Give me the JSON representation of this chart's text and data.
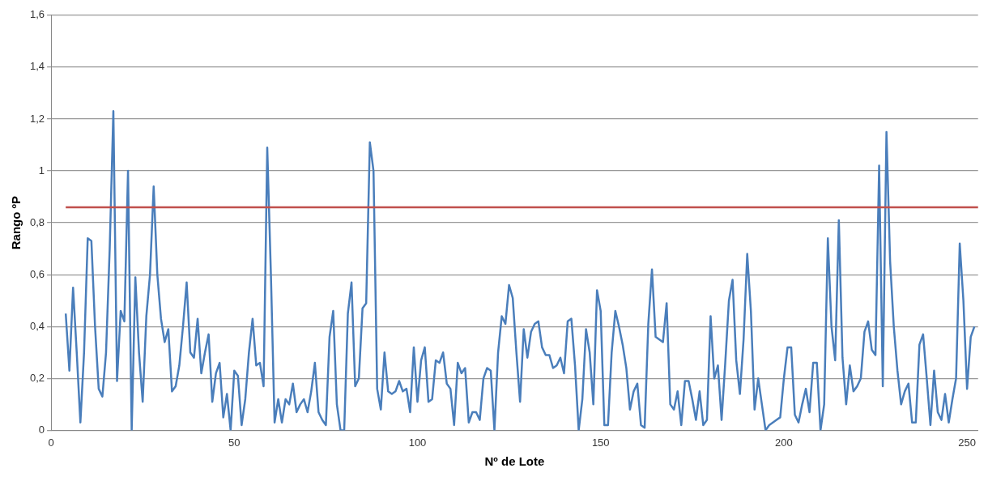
{
  "chart_data": {
    "type": "line",
    "xlabel": "Nº de Lote",
    "ylabel": "Rango ºP",
    "x": [
      4,
      5,
      6,
      7,
      8,
      9,
      10,
      11,
      12,
      13,
      14,
      15,
      16,
      17,
      18,
      19,
      20,
      21,
      22,
      23,
      24,
      25,
      26,
      27,
      28,
      29,
      30,
      31,
      32,
      33,
      34,
      35,
      36,
      37,
      38,
      39,
      40,
      41,
      42,
      43,
      44,
      45,
      46,
      47,
      48,
      49,
      50,
      51,
      52,
      53,
      54,
      55,
      56,
      57,
      58,
      59,
      60,
      61,
      62,
      63,
      64,
      65,
      66,
      67,
      68,
      69,
      70,
      71,
      72,
      73,
      74,
      75,
      76,
      77,
      78,
      79,
      80,
      81,
      82,
      83,
      84,
      85,
      86,
      87,
      88,
      89,
      90,
      91,
      92,
      93,
      94,
      95,
      96,
      97,
      98,
      99,
      100,
      101,
      102,
      103,
      104,
      105,
      106,
      107,
      108,
      109,
      110,
      111,
      112,
      113,
      114,
      115,
      116,
      117,
      118,
      119,
      120,
      121,
      122,
      123,
      124,
      125,
      126,
      127,
      128,
      129,
      130,
      131,
      132,
      133,
      134,
      135,
      136,
      137,
      138,
      139,
      140,
      141,
      142,
      143,
      144,
      145,
      146,
      147,
      148,
      149,
      150,
      151,
      152,
      153,
      154,
      155,
      156,
      157,
      158,
      159,
      160,
      161,
      162,
      163,
      164,
      165,
      166,
      167,
      168,
      169,
      170,
      171,
      172,
      173,
      174,
      175,
      176,
      177,
      178,
      179,
      180,
      181,
      182,
      183,
      184,
      185,
      186,
      187,
      188,
      189,
      190,
      191,
      192,
      193,
      194,
      195,
      196,
      197,
      198,
      199,
      200,
      201,
      202,
      203,
      204,
      205,
      206,
      207,
      208,
      209,
      210,
      211,
      212,
      213,
      214,
      215,
      216,
      217,
      218,
      219,
      220,
      221,
      222,
      223,
      224,
      225,
      226,
      227,
      228,
      229,
      230,
      231,
      232,
      233,
      234,
      235,
      236,
      237,
      238,
      239,
      240,
      241,
      242,
      243,
      244,
      245,
      246,
      247,
      248,
      249,
      250,
      251,
      252
    ],
    "series": [
      {
        "color": "#4a7ebb",
        "values": [
          0.45,
          0.23,
          0.55,
          0.3,
          0.03,
          0.3,
          0.74,
          0.73,
          0.4,
          0.16,
          0.13,
          0.3,
          0.7,
          1.23,
          0.19,
          0.46,
          0.42,
          1.0,
          0.0,
          0.59,
          0.3,
          0.11,
          0.44,
          0.6,
          0.94,
          0.6,
          0.43,
          0.34,
          0.39,
          0.15,
          0.17,
          0.25,
          0.4,
          0.57,
          0.3,
          0.28,
          0.43,
          0.22,
          0.3,
          0.37,
          0.11,
          0.22,
          0.26,
          0.05,
          0.14,
          0.0,
          0.23,
          0.21,
          0.02,
          0.12,
          0.3,
          0.43,
          0.25,
          0.26,
          0.17,
          1.09,
          0.6,
          0.03,
          0.12,
          0.03,
          0.12,
          0.1,
          0.18,
          0.07,
          0.1,
          0.12,
          0.07,
          0.15,
          0.26,
          0.07,
          0.04,
          0.02,
          0.36,
          0.46,
          0.1,
          0.0,
          0.0,
          0.45,
          0.57,
          0.17,
          0.2,
          0.47,
          0.49,
          1.11,
          1.0,
          0.16,
          0.08,
          0.3,
          0.15,
          0.14,
          0.15,
          0.19,
          0.15,
          0.16,
          0.07,
          0.32,
          0.11,
          0.27,
          0.32,
          0.11,
          0.12,
          0.27,
          0.26,
          0.3,
          0.18,
          0.16,
          0.02,
          0.26,
          0.22,
          0.24,
          0.03,
          0.07,
          0.07,
          0.04,
          0.2,
          0.24,
          0.23,
          0.0,
          0.3,
          0.44,
          0.41,
          0.56,
          0.51,
          0.3,
          0.11,
          0.39,
          0.28,
          0.38,
          0.41,
          0.42,
          0.32,
          0.29,
          0.29,
          0.24,
          0.25,
          0.28,
          0.22,
          0.42,
          0.43,
          0.25,
          0.0,
          0.12,
          0.39,
          0.3,
          0.1,
          0.54,
          0.46,
          0.02,
          0.02,
          0.3,
          0.46,
          0.4,
          0.33,
          0.24,
          0.08,
          0.15,
          0.18,
          0.02,
          0.01,
          0.41,
          0.62,
          0.36,
          0.35,
          0.34,
          0.49,
          0.1,
          0.08,
          0.15,
          0.02,
          0.19,
          0.19,
          0.12,
          0.04,
          0.15,
          0.02,
          0.04,
          0.44,
          0.2,
          0.25,
          0.04,
          0.26,
          0.5,
          0.58,
          0.27,
          0.14,
          0.35,
          0.68,
          0.46,
          0.08,
          0.2,
          0.1,
          0.0,
          0.02,
          0.03,
          0.04,
          0.05,
          0.2,
          0.32,
          0.32,
          0.06,
          0.03,
          0.1,
          0.16,
          0.07,
          0.26,
          0.26,
          0.0,
          0.1,
          0.74,
          0.4,
          0.27,
          0.81,
          0.28,
          0.1,
          0.25,
          0.15,
          0.17,
          0.2,
          0.38,
          0.42,
          0.31,
          0.29,
          1.02,
          0.17,
          1.15,
          0.65,
          0.4,
          0.23,
          0.1,
          0.15,
          0.18,
          0.03,
          0.03,
          0.33,
          0.37,
          0.2,
          0.02,
          0.23,
          0.07,
          0.04,
          0.14,
          0.03,
          0.12,
          0.2,
          0.72,
          0.5,
          0.16,
          0.36,
          0.4
        ]
      }
    ],
    "xlim": [
      0,
      253
    ],
    "xticks": [
      0,
      50,
      100,
      150,
      200,
      250
    ],
    "ylim": [
      0,
      1.6
    ],
    "yticks": [
      0,
      {
        "value": 0.2,
        "label": "0,2"
      },
      {
        "value": 0.4,
        "label": "0,4"
      },
      {
        "value": 0.6,
        "label": "0,6"
      },
      {
        "value": 0.8,
        "label": "0,8"
      },
      1,
      {
        "value": 1.2,
        "label": "1,2"
      },
      {
        "value": 1.4,
        "label": "1,4"
      },
      {
        "value": 1.6,
        "label": "1,6"
      }
    ],
    "ref_lines": [
      {
        "axis": "y",
        "value": 0.86,
        "color": "#c0504d"
      }
    ],
    "grid": "y",
    "marker": "none",
    "line_style": "solid",
    "legend": false
  }
}
